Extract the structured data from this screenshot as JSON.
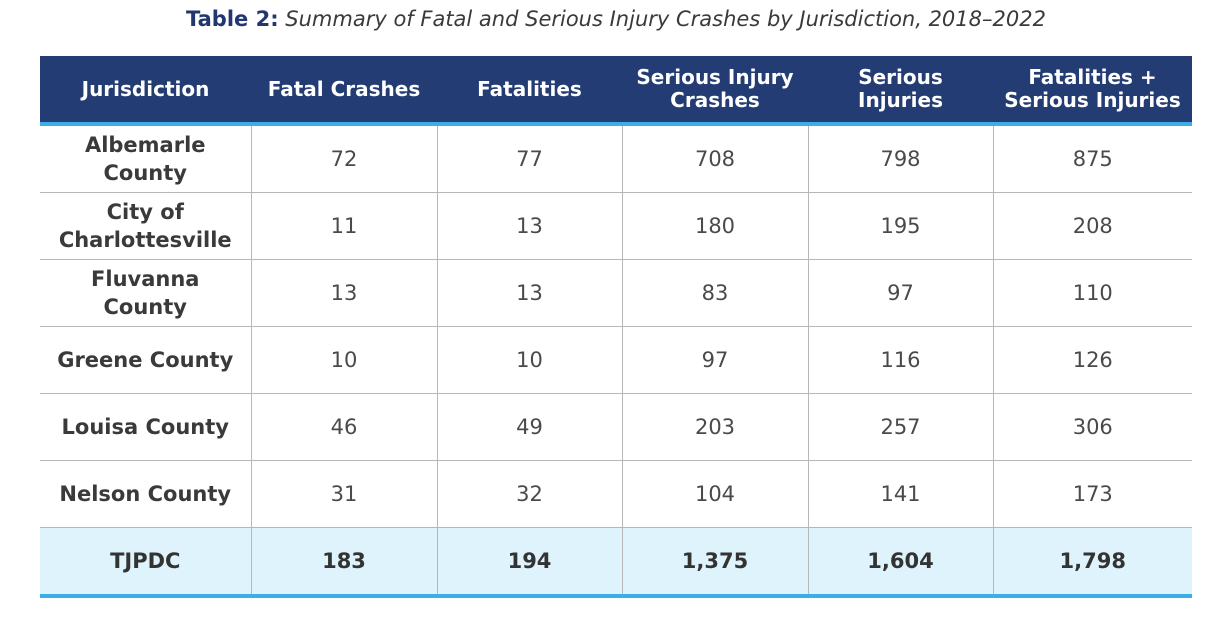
{
  "caption": {
    "label": "Table 2:",
    "text": "Summary of Fatal and Serious Injury Crashes by Jurisdiction, 2018–2022"
  },
  "table": {
    "headers": [
      "Jurisdiction",
      "Fatal Crashes",
      "Fatalities",
      "Serious Injury Crashes",
      "Serious Injuries",
      "Fatalities + Serious Injuries"
    ],
    "rows": [
      [
        "Albemarle County",
        "72",
        "77",
        "708",
        "798",
        "875"
      ],
      [
        "City of Charlottesville",
        "11",
        "13",
        "180",
        "195",
        "208"
      ],
      [
        "Fluvanna County",
        "13",
        "13",
        "83",
        "97",
        "110"
      ],
      [
        "Greene County",
        "10",
        "10",
        "97",
        "116",
        "126"
      ],
      [
        "Louisa County",
        "46",
        "49",
        "203",
        "257",
        "306"
      ],
      [
        "Nelson County",
        "31",
        "32",
        "104",
        "141",
        "173"
      ]
    ],
    "total": [
      "TJPDC",
      "183",
      "194",
      "1,375",
      "1,604",
      "1,798"
    ]
  },
  "colors": {
    "header_bg": "#233c73",
    "accent_line": "#3aaee6",
    "total_bg": "#dff3fc",
    "caption_label": "#21376f"
  }
}
